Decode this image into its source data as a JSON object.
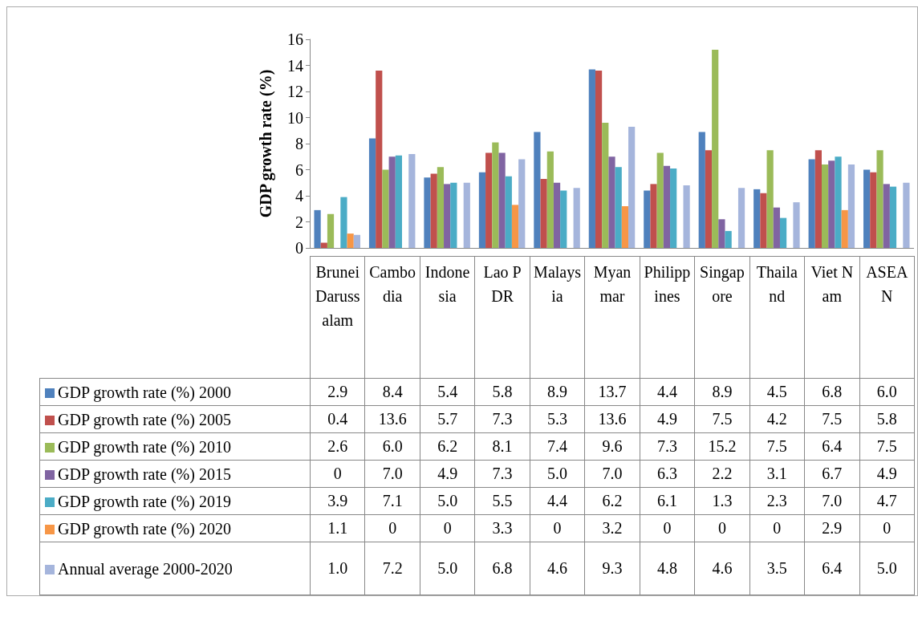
{
  "chart_data": {
    "type": "bar",
    "ylabel": "GDP growth rate (%)",
    "categories": [
      "Brunei Darussalam",
      "Cambodia",
      "Indonesia",
      "Lao PDR",
      "Malaysia",
      "Myanmar",
      "Philippines",
      "Singapore",
      "Thailand",
      "Viet Nam",
      "ASEAN"
    ],
    "series": [
      {
        "name": "GDP growth rate (%) 2000",
        "color": "#4f81bd",
        "values": [
          2.9,
          8.4,
          5.4,
          5.8,
          8.9,
          13.7,
          4.4,
          8.9,
          4.5,
          6.8,
          6.0
        ],
        "value_labels": [
          "2.9",
          "8.4",
          "5.4",
          "5.8",
          "8.9",
          "13.7",
          "4.4",
          "8.9",
          "4.5",
          "6.8",
          "6.0"
        ]
      },
      {
        "name": "GDP growth rate (%) 2005",
        "color": "#c0504d",
        "values": [
          0.4,
          13.6,
          5.7,
          7.3,
          5.3,
          13.6,
          4.9,
          7.5,
          4.2,
          7.5,
          5.8
        ],
        "value_labels": [
          "0.4",
          "13.6",
          "5.7",
          "7.3",
          "5.3",
          "13.6",
          "4.9",
          "7.5",
          "4.2",
          "7.5",
          "5.8"
        ]
      },
      {
        "name": "GDP growth rate (%) 2010",
        "color": "#9bbb59",
        "values": [
          2.6,
          6.0,
          6.2,
          8.1,
          7.4,
          9.6,
          7.3,
          15.2,
          7.5,
          6.4,
          7.5
        ],
        "value_labels": [
          "2.6",
          "6.0",
          "6.2",
          "8.1",
          "7.4",
          "9.6",
          "7.3",
          "15.2",
          "7.5",
          "6.4",
          "7.5"
        ]
      },
      {
        "name": "GDP growth rate (%) 2015",
        "color": "#8064a2",
        "values": [
          0,
          7.0,
          4.9,
          7.3,
          5.0,
          7.0,
          6.3,
          2.2,
          3.1,
          6.7,
          4.9
        ],
        "value_labels": [
          "0",
          "7.0",
          "4.9",
          "7.3",
          "5.0",
          "7.0",
          "6.3",
          "2.2",
          "3.1",
          "6.7",
          "4.9"
        ]
      },
      {
        "name": "GDP growth rate (%) 2019",
        "color": "#4bacc6",
        "values": [
          3.9,
          7.1,
          5.0,
          5.5,
          4.4,
          6.2,
          6.1,
          1.3,
          2.3,
          7.0,
          4.7
        ],
        "value_labels": [
          "3.9",
          "7.1",
          "5.0",
          "5.5",
          "4.4",
          "6.2",
          "6.1",
          "1.3",
          "2.3",
          "7.0",
          "4.7"
        ]
      },
      {
        "name": "GDP growth rate (%) 2020",
        "color": "#f79646",
        "values": [
          1.1,
          0,
          0,
          3.3,
          0,
          3.2,
          0,
          0,
          0,
          2.9,
          0
        ],
        "value_labels": [
          "1.1",
          "0",
          "0",
          "3.3",
          "0",
          "3.2",
          "0",
          "0",
          "0",
          "2.9",
          "0"
        ]
      },
      {
        "name": "Annual average 2000-2020",
        "color": "#a5b5dc",
        "values": [
          1.0,
          7.2,
          5.0,
          6.8,
          4.6,
          9.3,
          4.8,
          4.6,
          3.5,
          6.4,
          5.0
        ],
        "value_labels": [
          "1.0",
          "7.2",
          "5.0",
          "6.8",
          "4.6",
          "9.3",
          "4.8",
          "4.6",
          "3.5",
          "6.4",
          "5.0"
        ]
      }
    ],
    "ylim": [
      0,
      16
    ],
    "yticks": [
      0,
      2,
      4,
      6,
      8,
      10,
      12,
      14,
      16
    ],
    "grid": false,
    "legend": "bottom"
  }
}
